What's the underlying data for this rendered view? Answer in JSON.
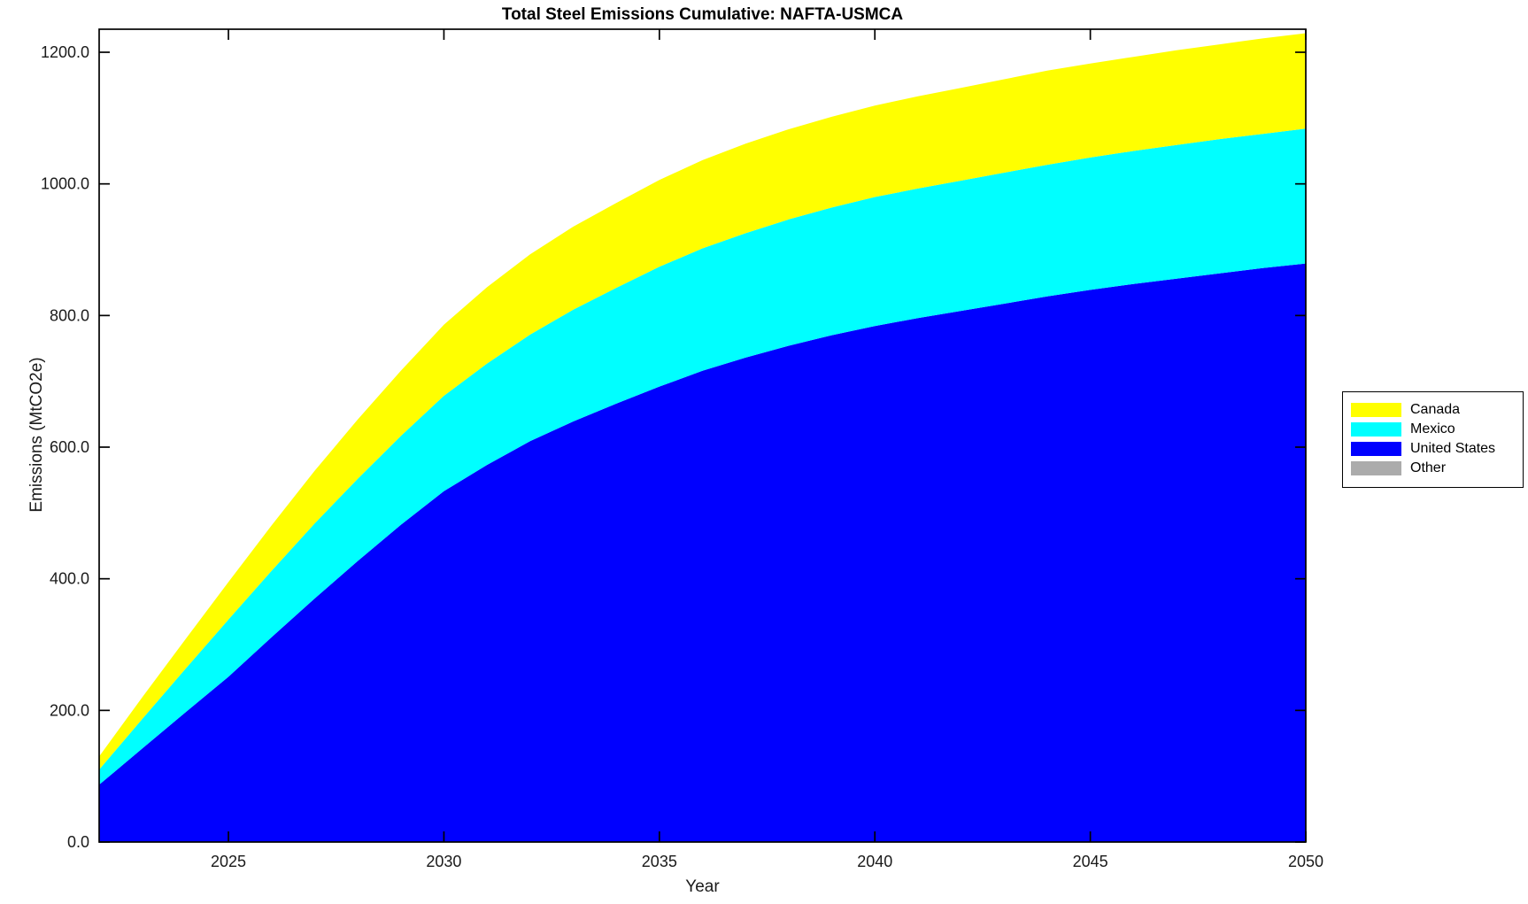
{
  "title": "Total Steel Emissions Cumulative: NAFTA-USMCA",
  "legend": {
    "items": [
      {
        "label": "Canada",
        "color": "#ffff00"
      },
      {
        "label": "Mexico",
        "color": "#00ffff"
      },
      {
        "label": "United States",
        "color": "#0000ff"
      },
      {
        "label": "Other",
        "color": "#ababab"
      }
    ]
  },
  "chart_data": {
    "type": "area",
    "stacked": true,
    "title": "Total Steel Emissions Cumulative: NAFTA-USMCA",
    "xlabel": "Year",
    "ylabel": "Emissions (MtCO2e)",
    "xlim": [
      2022,
      2050
    ],
    "ylim": [
      0,
      1235
    ],
    "grid": false,
    "legend_position": "right-outside",
    "x_tick_labels": [
      "2025",
      "2030",
      "2035",
      "2040",
      "2045",
      "2050"
    ],
    "x_tick_values": [
      2025,
      2030,
      2035,
      2040,
      2045,
      2050
    ],
    "y_tick_labels": [
      "0.0",
      "200.0",
      "400.0",
      "600.0",
      "800.0",
      "1000.0",
      "1200.0"
    ],
    "y_tick_values": [
      0,
      200,
      400,
      600,
      800,
      1000,
      1200
    ],
    "x": [
      2022,
      2023,
      2024,
      2025,
      2026,
      2027,
      2028,
      2029,
      2030,
      2031,
      2032,
      2033,
      2034,
      2035,
      2036,
      2037,
      2038,
      2039,
      2040,
      2041,
      2042,
      2043,
      2044,
      2045,
      2046,
      2047,
      2048,
      2049,
      2050
    ],
    "series": [
      {
        "name": "United States",
        "color": "#0000ff",
        "values": [
          87,
          142,
          197,
          251,
          311,
          370,
          427,
          482,
          533,
          573,
          609,
          639,
          666,
          692,
          716,
          736,
          754,
          770,
          784,
          796,
          807,
          818,
          829,
          839,
          848,
          856,
          864,
          872,
          879
        ]
      },
      {
        "name": "Mexico",
        "color": "#00ffff",
        "values": [
          23,
          45,
          66,
          87,
          101,
          114,
          125,
          135,
          145,
          154,
          162,
          170,
          176,
          182,
          186,
          189,
          192,
          194,
          196,
          197,
          198,
          199,
          200,
          201,
          202,
          203,
          204,
          204,
          205
        ]
      },
      {
        "name": "Canada",
        "color": "#ffff00",
        "values": [
          20,
          33,
          45,
          57,
          69,
          80,
          90,
          99,
          108,
          116,
          122,
          126,
          129,
          132,
          134,
          136,
          137,
          138,
          139,
          140,
          141,
          142,
          143,
          143,
          143,
          144,
          144,
          145,
          145
        ]
      },
      {
        "name": "Other",
        "color": "#ababab",
        "values": [
          0,
          0,
          0,
          0,
          0,
          0,
          0,
          0,
          0,
          0,
          0,
          0,
          0,
          0,
          0,
          0,
          0,
          0,
          0,
          0,
          0,
          0,
          0,
          0,
          0,
          0,
          0,
          0,
          0
        ]
      }
    ]
  }
}
